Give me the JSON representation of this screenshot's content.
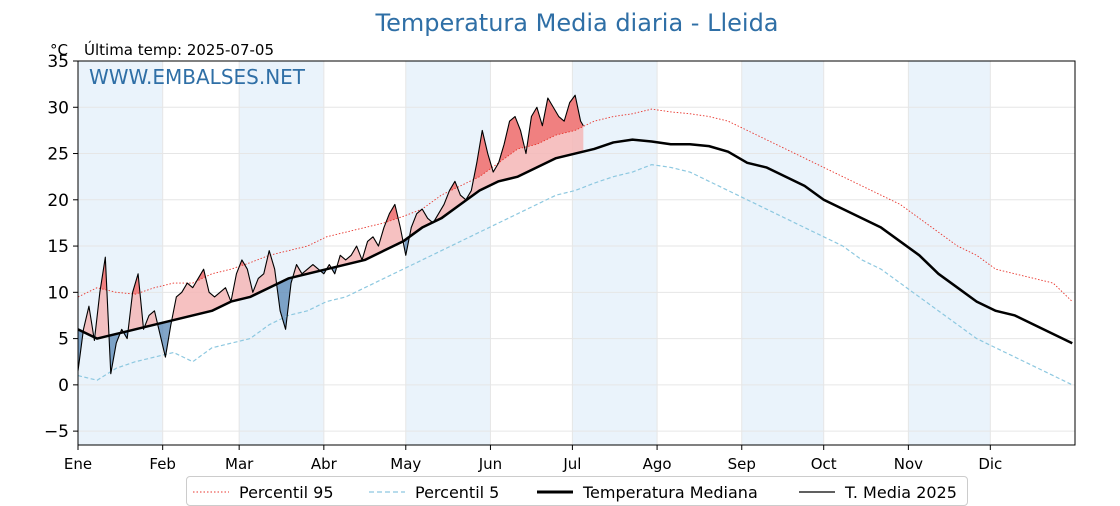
{
  "title": "Temperatura Media diaria - Lleida",
  "unit_label": "°C",
  "last_temp": "Última temp: 2025-07-05",
  "watermark": "WWW.EMBALSES.NET",
  "colors": {
    "title": "#2f6fa6",
    "p95": "#e8362e",
    "p5": "#8dc8e0",
    "median": "#000000",
    "current": "#000000",
    "above": "#f08080",
    "below": "#4d7fb0",
    "above_fill": "#f4b6b6",
    "band": "#eaf3fb"
  },
  "legend": {
    "p95": "Percentil 95",
    "p5": "Percentil 5",
    "median": "Temperatura Mediana",
    "current": "T. Media 2025"
  },
  "chart_data": {
    "type": "line",
    "title": "Temperatura Media diaria - Lleida",
    "ylabel": "°C",
    "xlim": [
      1,
      366
    ],
    "ylim": [
      -6.5,
      35
    ],
    "yticks": [
      -5,
      0,
      5,
      10,
      15,
      20,
      25,
      30,
      35
    ],
    "months": [
      "Ene",
      "Feb",
      "Mar",
      "Abr",
      "May",
      "Jun",
      "Jul",
      "Ago",
      "Sep",
      "Oct",
      "Nov",
      "Dic"
    ],
    "month_start_days": [
      1,
      32,
      60,
      91,
      121,
      152,
      182,
      213,
      244,
      274,
      305,
      335
    ],
    "grid": true,
    "legend_position": "bottom",
    "x_unit": "day of year",
    "series": [
      {
        "name": "Percentil 95",
        "style": "dotted",
        "x": [
          1,
          8,
          15,
          22,
          29,
          36,
          43,
          50,
          57,
          64,
          71,
          78,
          85,
          92,
          99,
          106,
          113,
          120,
          127,
          134,
          141,
          148,
          155,
          162,
          169,
          176,
          183,
          190,
          197,
          204,
          211,
          218,
          225,
          232,
          239,
          246,
          253,
          260,
          267,
          274,
          281,
          288,
          295,
          302,
          309,
          316,
          323,
          330,
          337,
          344,
          351,
          358,
          365
        ],
        "values": [
          9.5,
          10.5,
          10.0,
          9.8,
          10.5,
          11.0,
          11.0,
          12.0,
          12.5,
          13.2,
          14.0,
          14.5,
          15.0,
          16.0,
          16.5,
          17.0,
          17.5,
          18.2,
          19.0,
          20.5,
          21.5,
          22.5,
          24.0,
          25.5,
          26.0,
          27.0,
          27.5,
          28.5,
          29.0,
          29.3,
          29.8,
          29.5,
          29.3,
          29.0,
          28.5,
          27.5,
          26.5,
          25.5,
          24.5,
          23.5,
          22.5,
          21.5,
          20.5,
          19.5,
          18.0,
          16.5,
          15.0,
          14.0,
          12.5,
          12.0,
          11.5,
          11.0,
          9.0
        ]
      },
      {
        "name": "Percentil 5",
        "style": "dashed",
        "x": [
          1,
          8,
          15,
          22,
          29,
          36,
          43,
          50,
          57,
          64,
          71,
          78,
          85,
          92,
          99,
          106,
          113,
          120,
          127,
          134,
          141,
          148,
          155,
          162,
          169,
          176,
          183,
          190,
          197,
          204,
          211,
          218,
          225,
          232,
          239,
          246,
          253,
          260,
          267,
          274,
          281,
          288,
          295,
          302,
          309,
          316,
          323,
          330,
          337,
          344,
          351,
          358,
          365
        ],
        "values": [
          1.0,
          0.5,
          1.8,
          2.5,
          3.0,
          3.5,
          2.5,
          4.0,
          4.5,
          5.0,
          6.5,
          7.5,
          8.0,
          9.0,
          9.5,
          10.5,
          11.5,
          12.5,
          13.5,
          14.5,
          15.5,
          16.5,
          17.5,
          18.5,
          19.5,
          20.5,
          21.0,
          21.8,
          22.5,
          23.0,
          23.8,
          23.5,
          23.0,
          22.0,
          21.0,
          20.0,
          19.0,
          18.0,
          17.0,
          16.0,
          15.0,
          13.5,
          12.5,
          11.0,
          9.5,
          8.0,
          6.5,
          5.0,
          4.0,
          3.0,
          2.0,
          1.0,
          0.0
        ]
      },
      {
        "name": "Temperatura Mediana",
        "style": "solid-thick",
        "x": [
          1,
          8,
          15,
          22,
          29,
          36,
          43,
          50,
          57,
          64,
          71,
          78,
          85,
          92,
          99,
          106,
          113,
          120,
          127,
          134,
          141,
          148,
          155,
          162,
          169,
          176,
          183,
          190,
          197,
          204,
          211,
          218,
          225,
          232,
          239,
          246,
          253,
          260,
          267,
          274,
          281,
          288,
          295,
          302,
          309,
          316,
          323,
          330,
          337,
          344,
          351,
          358,
          365
        ],
        "values": [
          6.0,
          5.0,
          5.5,
          6.0,
          6.5,
          7.0,
          7.5,
          8.0,
          9.0,
          9.5,
          10.5,
          11.5,
          12.0,
          12.5,
          13.0,
          13.5,
          14.5,
          15.5,
          17.0,
          18.0,
          19.5,
          21.0,
          22.0,
          22.5,
          23.5,
          24.5,
          25.0,
          25.5,
          26.2,
          26.5,
          26.3,
          26.0,
          26.0,
          25.8,
          25.2,
          24.0,
          23.5,
          22.5,
          21.5,
          20.0,
          19.0,
          18.0,
          17.0,
          15.5,
          14.0,
          12.0,
          10.5,
          9.0,
          8.0,
          7.5,
          6.5,
          5.5,
          4.5
        ]
      },
      {
        "name": "T. Media 2025",
        "style": "solid",
        "x": [
          1,
          3,
          5,
          7,
          9,
          11,
          13,
          15,
          17,
          19,
          21,
          23,
          25,
          27,
          29,
          31,
          33,
          35,
          37,
          39,
          41,
          43,
          45,
          47,
          49,
          51,
          53,
          55,
          57,
          59,
          61,
          63,
          65,
          67,
          69,
          71,
          73,
          75,
          77,
          79,
          81,
          83,
          85,
          87,
          89,
          91,
          93,
          95,
          97,
          99,
          101,
          103,
          105,
          107,
          109,
          111,
          113,
          115,
          117,
          119,
          121,
          123,
          125,
          127,
          129,
          131,
          133,
          135,
          137,
          139,
          141,
          143,
          145,
          147,
          149,
          151,
          153,
          155,
          157,
          159,
          161,
          163,
          165,
          167,
          169,
          171,
          173,
          175,
          177,
          179,
          181,
          183,
          185,
          186
        ],
        "values": [
          1.5,
          6.0,
          8.5,
          4.8,
          10.0,
          13.8,
          1.2,
          4.5,
          6.0,
          5.0,
          10.0,
          12.0,
          6.0,
          7.5,
          8.0,
          5.5,
          3.0,
          6.5,
          9.5,
          10.0,
          11.0,
          10.5,
          11.5,
          12.5,
          10.0,
          9.5,
          10.0,
          10.5,
          9.0,
          12.0,
          13.5,
          12.5,
          10.0,
          11.5,
          12.0,
          14.5,
          12.5,
          8.0,
          6.0,
          11.0,
          13.0,
          12.0,
          12.5,
          13.0,
          12.5,
          12.0,
          13.0,
          12.0,
          14.0,
          13.5,
          14.0,
          15.0,
          13.5,
          15.5,
          16.0,
          15.0,
          17.0,
          18.5,
          19.5,
          17.0,
          14.0,
          17.0,
          18.5,
          19.0,
          18.0,
          17.5,
          18.5,
          19.5,
          21.0,
          22.0,
          20.5,
          20.0,
          21.0,
          24.0,
          27.5,
          25.0,
          23.0,
          24.0,
          26.0,
          28.5,
          29.0,
          27.5,
          25.0,
          29.0,
          30.0,
          28.0,
          31.0,
          30.0,
          29.0,
          28.5,
          30.5,
          31.3,
          28.5,
          28.0
        ]
      }
    ]
  }
}
